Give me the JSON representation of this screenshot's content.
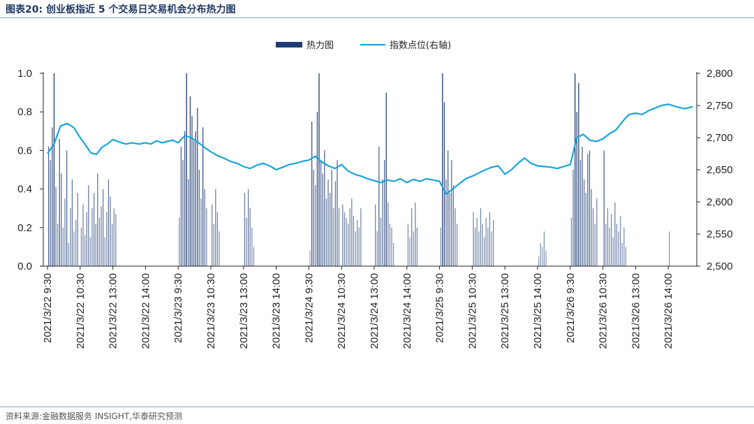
{
  "figure_title": "图表20:  创业板指近 5 个交易日交易机会分布热力图",
  "source": "资料来源:金融数据服务 INSIGHT,华泰研究预测",
  "colors": {
    "bars": "#1f3c73",
    "line": "#1aa3dc",
    "axis": "#222222",
    "rule": "#8fa6c8"
  },
  "chart_data": {
    "type": "bar",
    "title": "",
    "legend": [
      {
        "name": "热力图",
        "type": "bar",
        "axis": "left"
      },
      {
        "name": "指数点位(右轴)",
        "type": "line",
        "axis": "right"
      }
    ],
    "legend_position": "top-center",
    "grid": false,
    "y_left": {
      "range": [
        0,
        1.0
      ],
      "ticks": [
        "0.0",
        "0.2",
        "0.4",
        "0.6",
        "0.8",
        "1.0"
      ]
    },
    "y_right": {
      "range": [
        2500,
        2800
      ],
      "ticks": [
        "2,500",
        "2,550",
        "2,600",
        "2,650",
        "2,700",
        "2,750",
        "2,800"
      ]
    },
    "x_ticks": [
      "2021/3/22 9:30",
      "2021/3/22 10:30",
      "2021/3/22 13:00",
      "2021/3/22 14:00",
      "2021/3/23 9:30",
      "2021/3/23 10:30",
      "2021/3/23 13:00",
      "2021/3/23 14:00",
      "2021/3/24 9:30",
      "2021/3/24 10:30",
      "2021/3/24 13:00",
      "2021/3/24 14:00",
      "2021/3/25 9:30",
      "2021/3/25 10:30",
      "2021/3/25 13:00",
      "2021/3/25 14:00",
      "2021/3/26 9:30",
      "2021/3/26 10:30",
      "2021/3/26 13:00",
      "2021/3/26 14:00"
    ],
    "heat_segments": [
      {
        "label": "2021/3/22 9:30",
        "values": [
          0.62,
          0.55,
          0.72,
          1.0,
          0.41,
          0.22,
          0.66,
          0.48,
          0.2,
          0.35,
          0.6,
          0.12,
          0.3,
          0.45,
          0.18,
          0.24,
          0.38
        ]
      },
      {
        "label": "2021/3/22 10:30",
        "values": [
          0.2,
          0.32,
          0.16,
          0.28,
          0.42,
          0.15,
          0.3,
          0.38,
          0.22,
          0.48,
          0.25,
          0.31,
          0.4,
          0.15,
          0.28,
          0.45,
          0.36,
          0.22,
          0.3,
          0.27
        ]
      },
      {
        "label": "2021/3/23 9:30",
        "values": [
          0.25,
          0.62,
          0.55,
          0.7,
          1.0,
          0.45,
          0.88,
          0.78,
          0.65,
          0.7,
          0.82,
          0.5,
          0.35,
          0.72,
          0.4,
          0.3
        ]
      },
      {
        "label": "2021/3/23 10:30",
        "values": [
          0.32,
          0.22,
          0.4,
          0.28,
          0.18
        ]
      },
      {
        "label": "2021/3/23 13:00",
        "values": [
          0.38,
          0.25,
          0.4,
          0.3,
          0.2,
          0.1
        ]
      },
      {
        "label": "2021/3/24 9:30",
        "values": [
          0.08,
          0.75,
          0.5,
          0.42,
          0.8,
          1.0,
          0.55,
          0.48,
          0.6,
          0.35,
          0.45,
          0.38,
          0.5,
          0.3,
          0.44,
          0.55,
          0.3
        ]
      },
      {
        "label": "2021/3/24 10:30",
        "values": [
          0.32,
          0.28,
          0.25,
          0.22,
          0.3,
          0.35,
          0.26,
          0.18,
          0.24,
          0.2,
          0.3
        ]
      },
      {
        "label": "2021/3/24 13:00",
        "values": [
          0.32,
          0.18,
          0.62,
          0.25,
          0.45,
          0.55,
          0.9,
          0.33,
          0.22,
          0.2,
          0.12
        ]
      },
      {
        "label": "2021/3/24 14:00",
        "values": [
          0.22,
          0.15,
          0.3,
          0.18,
          0.33,
          0.2
        ]
      },
      {
        "label": "2021/3/25 9:30",
        "values": [
          0.2,
          1.0,
          0.85,
          0.45,
          0.6,
          0.38,
          0.55,
          0.42,
          0.3,
          0.22
        ]
      },
      {
        "label": "2021/3/25 10:30",
        "values": [
          0.28,
          0.2,
          0.25,
          0.18,
          0.3,
          0.22,
          0.15,
          0.25,
          0.2,
          0.28,
          0.18,
          0.24
        ]
      },
      {
        "label": "2021/3/25 14:00",
        "values": [
          0.05,
          0.12,
          0.1,
          0.18,
          0.08
        ]
      },
      {
        "label": "2021/3/26 9:30",
        "values": [
          0.25,
          0.5,
          1.0,
          0.8,
          0.95,
          0.55,
          0.62,
          0.45,
          0.38,
          0.58,
          0.6,
          0.4,
          0.3,
          0.22,
          0.35
        ]
      },
      {
        "label": "2021/3/26 10:30",
        "values": [
          0.6,
          0.22,
          0.3,
          0.2,
          0.27,
          0.15,
          0.33,
          0.22,
          0.18,
          0.26,
          0.12,
          0.2,
          0.1
        ]
      },
      {
        "label": "2021/3/26 14:00",
        "values": [
          0.18
        ]
      }
    ],
    "index_series": {
      "name": "指数点位(右轴)",
      "points": [
        [
          "2021/3/22 9:30",
          2675
        ],
        [
          "",
          2690
        ],
        [
          "",
          2718
        ],
        [
          "",
          2722
        ],
        [
          "",
          2716
        ],
        [
          "2021/3/22 10:30",
          2700
        ],
        [
          "",
          2688
        ],
        [
          "",
          2676
        ],
        [
          "",
          2674
        ],
        [
          "",
          2685
        ],
        [
          "",
          2690
        ],
        [
          "2021/3/22 13:00",
          2697
        ],
        [
          "",
          2693
        ],
        [
          "",
          2690
        ],
        [
          "",
          2692
        ],
        [
          "",
          2690
        ],
        [
          "2021/3/22 14:00",
          2692
        ],
        [
          "",
          2690
        ],
        [
          "",
          2695
        ],
        [
          "",
          2692
        ],
        [
          "",
          2694
        ],
        [
          "",
          2696
        ],
        [
          "2021/3/23 9:30",
          2692
        ],
        [
          "",
          2703
        ],
        [
          "",
          2700
        ],
        [
          "",
          2693
        ],
        [
          "",
          2685
        ],
        [
          "2021/3/23 10:30",
          2678
        ],
        [
          "",
          2672
        ],
        [
          "",
          2668
        ],
        [
          "",
          2663
        ],
        [
          "",
          2660
        ],
        [
          "2021/3/23 13:00",
          2655
        ],
        [
          "",
          2652
        ],
        [
          "",
          2657
        ],
        [
          "",
          2660
        ],
        [
          "",
          2656
        ],
        [
          "2021/3/23 14:00",
          2650
        ],
        [
          "",
          2654
        ],
        [
          "",
          2658
        ],
        [
          "",
          2660
        ],
        [
          "",
          2663
        ],
        [
          "2021/3/24 9:30",
          2665
        ],
        [
          "",
          2671
        ],
        [
          "",
          2662
        ],
        [
          "",
          2656
        ],
        [
          "",
          2652
        ],
        [
          "2021/3/24 10:30",
          2658
        ],
        [
          "",
          2648
        ],
        [
          "",
          2643
        ],
        [
          "",
          2640
        ],
        [
          "",
          2636
        ],
        [
          "2021/3/24 13:00",
          2633
        ],
        [
          "",
          2630
        ],
        [
          "",
          2634
        ],
        [
          "",
          2632
        ],
        [
          "",
          2636
        ],
        [
          "2021/3/24 14:00",
          2630
        ],
        [
          "",
          2635
        ],
        [
          "",
          2632
        ],
        [
          "",
          2636
        ],
        [
          "",
          2634
        ],
        [
          "2021/3/25 9:30",
          2632
        ],
        [
          "",
          2612
        ],
        [
          "",
          2620
        ],
        [
          "",
          2628
        ],
        [
          "",
          2636
        ],
        [
          "2021/3/25 10:30",
          2640
        ],
        [
          "",
          2645
        ],
        [
          "",
          2650
        ],
        [
          "",
          2654
        ],
        [
          "",
          2656
        ],
        [
          "2021/3/25 13:00",
          2643
        ],
        [
          "",
          2650
        ],
        [
          "",
          2660
        ],
        [
          "",
          2668
        ],
        [
          "",
          2660
        ],
        [
          "2021/3/25 14:00",
          2656
        ],
        [
          "",
          2655
        ],
        [
          "",
          2654
        ],
        [
          "",
          2652
        ],
        [
          "",
          2655
        ],
        [
          "2021/3/26 9:30",
          2658
        ],
        [
          "",
          2700
        ],
        [
          "",
          2705
        ],
        [
          "",
          2696
        ],
        [
          "",
          2694
        ],
        [
          "2021/3/26 10:30",
          2698
        ],
        [
          "",
          2706
        ],
        [
          "",
          2712
        ],
        [
          "",
          2725
        ],
        [
          "",
          2736
        ],
        [
          "2021/3/26 13:00",
          2738
        ],
        [
          "",
          2736
        ],
        [
          "",
          2742
        ],
        [
          "",
          2746
        ],
        [
          "",
          2750
        ],
        [
          "2021/3/26 14:00",
          2752
        ],
        [
          "",
          2748
        ],
        [
          "",
          2745
        ],
        [
          "",
          2748
        ]
      ]
    }
  }
}
